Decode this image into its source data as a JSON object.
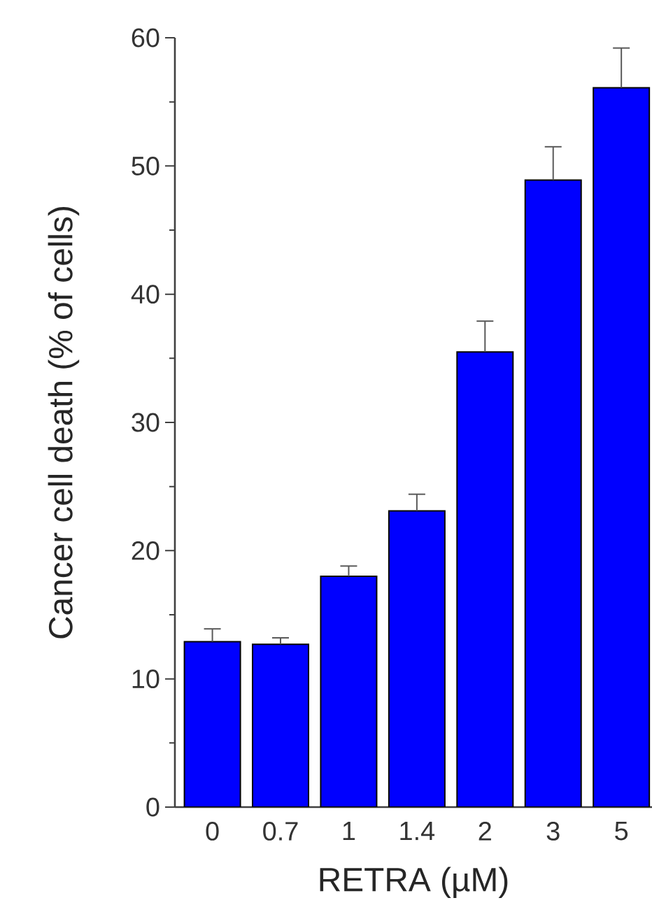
{
  "chart_data": {
    "type": "bar",
    "xlabel": "RETRA (µM)",
    "ylabel": "Cancer cell death (% of cells)",
    "categories": [
      "0",
      "0.7",
      "1",
      "1.4",
      "2",
      "3",
      "5"
    ],
    "values": [
      12.9,
      12.7,
      18.0,
      23.1,
      35.5,
      48.9,
      56.1
    ],
    "errors": [
      1.0,
      0.5,
      0.8,
      1.3,
      2.4,
      2.6,
      3.1
    ],
    "color": "#0000ff",
    "ylim": [
      0,
      60
    ],
    "yticks": [
      0,
      10,
      20,
      30,
      40,
      50,
      60
    ],
    "grid": false
  }
}
